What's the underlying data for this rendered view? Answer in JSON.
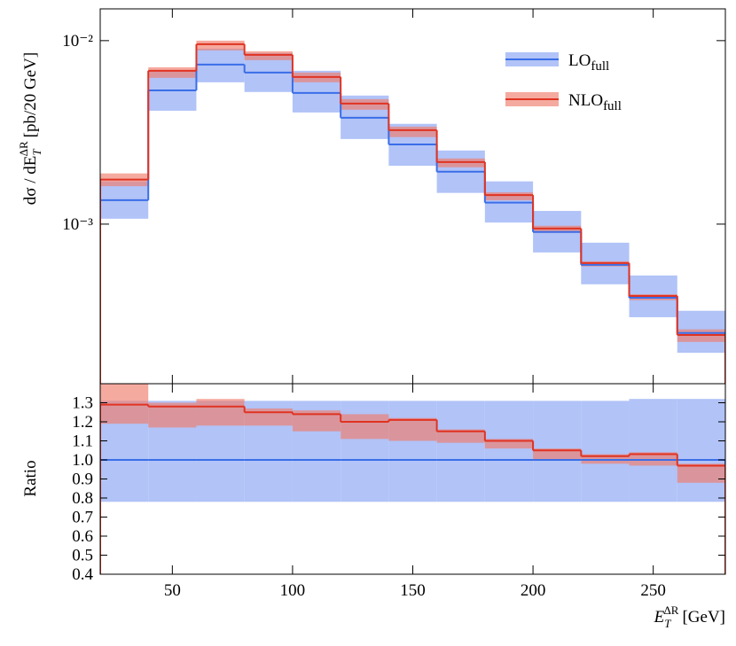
{
  "chart_data": {
    "type": "histogram",
    "ylabel": {
      "main": "dσ / dE",
      "sub": "T",
      "sup": "ΔR",
      "unit": "[pb/20 GeV]"
    },
    "xlabel": {
      "main": "E",
      "sub": "T",
      "sup": "ΔR",
      "unit": "[GeV]"
    },
    "ratio_ylabel": "Ratio",
    "bins": [
      20,
      40,
      60,
      80,
      100,
      120,
      140,
      160,
      180,
      200,
      220,
      240,
      260,
      280
    ],
    "xlim": [
      20,
      280
    ],
    "xticks": [
      50,
      100,
      150,
      200,
      250
    ],
    "ylim": [
      0.000135,
      0.0149
    ],
    "log_y": true,
    "yticks": [
      {
        "value": 0.01,
        "label": "10⁻²"
      },
      {
        "value": 0.001,
        "label": "10⁻³"
      }
    ],
    "ratio_ylim": [
      0.4,
      1.4
    ],
    "ratio_yticks": [
      0.4,
      0.5,
      0.6,
      0.7,
      0.8,
      0.9,
      {
        "value": 1.0,
        "label": "1.0"
      },
      1.1,
      1.2,
      1.3
    ],
    "legend": "upper right",
    "series": [
      {
        "name": "LO",
        "name_sub": "full",
        "color": "#3a6ee8",
        "band_color": "#a8bcf6",
        "values": [
          0.00135,
          0.00536,
          0.00741,
          0.0067,
          0.00519,
          0.0038,
          0.00272,
          0.00193,
          0.00131,
          0.000906,
          0.0006,
          0.000397,
          0.000255
        ],
        "band_low": [
          0.00107,
          0.00415,
          0.00593,
          0.00525,
          0.00406,
          0.00291,
          0.00208,
          0.00148,
          0.00102,
          0.000701,
          0.00047,
          0.000311,
          0.000199
        ],
        "band_high": [
          0.00171,
          0.00685,
          0.00904,
          0.00856,
          0.00685,
          0.00502,
          0.00352,
          0.00252,
          0.00171,
          0.00118,
          0.000792,
          0.000525,
          0.000337
        ],
        "ratio": [
          1,
          1,
          1,
          1,
          1,
          1,
          1,
          1,
          1,
          1,
          1,
          1,
          1
        ],
        "ratio_low": [
          0.78,
          0.78,
          0.78,
          0.78,
          0.78,
          0.78,
          0.78,
          0.78,
          0.78,
          0.78,
          0.78,
          0.78,
          0.78
        ],
        "ratio_high": [
          1.31,
          1.31,
          1.31,
          1.31,
          1.31,
          1.31,
          1.31,
          1.31,
          1.31,
          1.31,
          1.31,
          1.32,
          1.32
        ]
      },
      {
        "name": "NLO",
        "name_sub": "full",
        "color": "#e03322",
        "band_color": "#f07c6c",
        "values": [
          0.00175,
          0.00685,
          0.00956,
          0.00837,
          0.00634,
          0.00454,
          0.00325,
          0.00218,
          0.00144,
          0.000946,
          0.000613,
          0.000406,
          0.000249
        ],
        "band_low": [
          0.00161,
          0.00627,
          0.00885,
          0.00783,
          0.00593,
          0.0042,
          0.00298,
          0.00204,
          0.00135,
          0.000897,
          0.000588,
          0.000385,
          0.000228
        ],
        "band_high": [
          0.00189,
          0.00716,
          0.01,
          0.00875,
          0.0067,
          0.0048,
          0.0034,
          0.00228,
          0.00149,
          0.00098,
          0.000627,
          0.000415,
          0.000267
        ],
        "ratio": [
          1.29,
          1.28,
          1.28,
          1.25,
          1.24,
          1.2,
          1.21,
          1.15,
          1.1,
          1.05,
          1.02,
          1.03,
          0.97
        ],
        "ratio_low": [
          1.19,
          1.17,
          1.18,
          1.18,
          1.15,
          1.11,
          1.1,
          1.09,
          1.06,
          1.0,
          0.98,
          0.97,
          0.88
        ],
        "ratio_high": [
          1.4,
          1.3,
          1.32,
          1.27,
          1.26,
          1.24,
          1.22,
          1.16,
          1.11,
          1.06,
          1.03,
          1.04,
          0.98
        ]
      }
    ]
  }
}
